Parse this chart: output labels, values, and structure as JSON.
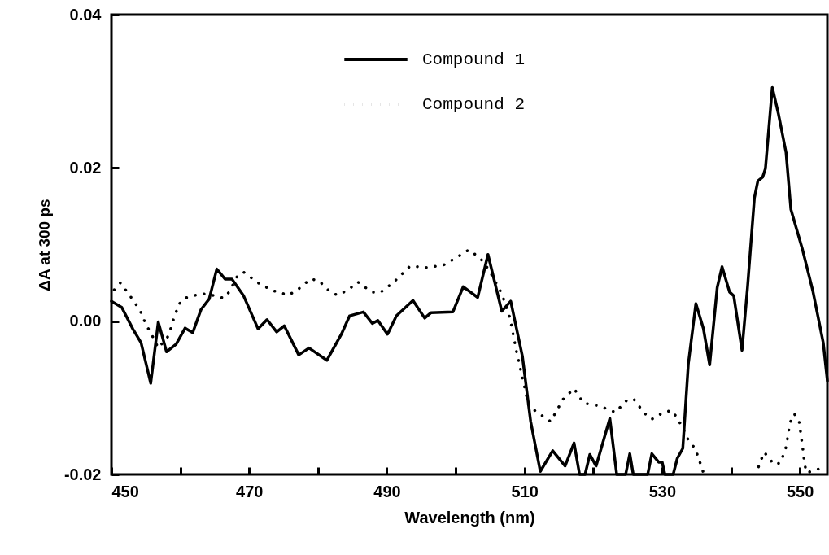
{
  "chart_data": {
    "type": "line",
    "xlabel": "Wavelength (nm)",
    "ylabel": "ΔA at 300 ps",
    "xlim": [
      450,
      554
    ],
    "ylim": [
      -0.02,
      0.04
    ],
    "xticks": [
      450,
      {
        "value": 460,
        "label": null
      },
      470,
      {
        "value": 480,
        "label": null
      },
      490,
      {
        "value": 500,
        "label": null
      },
      510,
      {
        "value": 520,
        "label": null
      },
      530,
      {
        "value": 540,
        "label": null
      },
      550
    ],
    "yticks": [
      {
        "value": -0.02,
        "label": "-0.02"
      },
      {
        "value": 0,
        "label": "0.00"
      },
      {
        "value": 0.02,
        "label": "0.02"
      },
      {
        "value": 0.04,
        "label": "0.04"
      }
    ],
    "grid": false,
    "legend": "top",
    "marker": "none",
    "series": [
      {
        "name": "Compound 1",
        "color": "#000000",
        "line_style": "solid",
        "x": [
          450.0,
          451.5,
          453.1,
          454.3,
          455.7,
          456.8,
          458.0,
          459.4,
          460.7,
          461.8,
          463.0,
          464.2,
          465.3,
          466.5,
          467.5,
          469.2,
          471.3,
          472.6,
          474.0,
          475.1,
          477.2,
          478.7,
          481.3,
          483.4,
          484.6,
          486.6,
          487.9,
          488.7,
          490.1,
          491.4,
          493.8,
          495.5,
          496.4,
          499.6,
          501.1,
          503.2,
          504.7,
          506.7,
          508.0,
          509.7,
          510.9,
          512.3,
          514.1,
          515.9,
          517.2,
          518.0,
          518.8,
          519.5,
          520.4,
          522.4,
          523.4,
          524.7,
          525.3,
          525.8,
          527.9,
          528.5,
          529.5,
          530.0,
          530.4,
          531.6,
          532.2,
          533.0,
          533.8,
          534.9,
          536.0,
          536.9,
          538.0,
          538.7,
          539.8,
          540.4,
          541.6,
          542.4,
          543.4,
          543.9,
          544.6,
          545.0,
          546.0,
          546.9,
          548.0,
          548.7,
          550.4,
          551.9,
          553.4,
          554.0
        ],
        "values": [
          0.0026,
          0.0018,
          -0.001,
          -0.0028,
          -0.0081,
          -0.0001,
          -0.004,
          -0.003,
          -0.0009,
          -0.0015,
          0.0015,
          0.0029,
          0.0068,
          0.0055,
          0.0055,
          0.0033,
          -0.001,
          0.0002,
          -0.0014,
          -0.0006,
          -0.0044,
          -0.0035,
          -0.0051,
          -0.0017,
          0.0007,
          0.0012,
          -0.0003,
          0.0001,
          -0.0017,
          0.0007,
          0.0027,
          0.0004,
          0.0011,
          0.0012,
          0.0045,
          0.0031,
          0.0087,
          0.0013,
          0.0026,
          -0.0046,
          -0.0131,
          -0.0196,
          -0.0169,
          -0.0189,
          -0.0159,
          -0.02,
          -0.02,
          -0.0174,
          -0.0189,
          -0.0127,
          -0.02,
          -0.02,
          -0.0173,
          -0.02,
          -0.02,
          -0.0173,
          -0.0184,
          -0.0184,
          -0.02,
          -0.02,
          -0.0179,
          -0.0166,
          -0.0056,
          0.0023,
          -0.001,
          -0.0057,
          0.0044,
          0.0071,
          0.0038,
          0.0033,
          -0.0038,
          0.0044,
          0.0161,
          0.0183,
          0.0188,
          0.0199,
          0.0305,
          0.027,
          0.022,
          0.0146,
          0.0093,
          0.0039,
          -0.0028,
          -0.0078
        ]
      },
      {
        "name": "Compound 2",
        "color": "#000000",
        "line_style": "dotted",
        "x": [
          450.4,
          451.3,
          452.7,
          454.1,
          455.1,
          455.7,
          456.8,
          458.3,
          459.0,
          459.8,
          460.6,
          463.1,
          465.2,
          466.3,
          467.1,
          468.3,
          469.2,
          471.3,
          473.4,
          475.7,
          476.9,
          478.9,
          480.1,
          481.9,
          482.9,
          484.4,
          485.8,
          487.8,
          489.0,
          490.9,
          493.4,
          495.8,
          498.2,
          500.3,
          501.9,
          503.5,
          504.9,
          506.7,
          507.9,
          508.8,
          509.6,
          510.6,
          511.7,
          513.8,
          515.6,
          517.2,
          518.6,
          521.0,
          523.2,
          525.0,
          525.9,
          527.4,
          528.5,
          530.4,
          531.5,
          532.2,
          532.8,
          533.9,
          534.8,
          535.6,
          536.0,
          540.0,
          544.0,
          544.8,
          545.6,
          546.2,
          547.2,
          548.0,
          548.6,
          549.2,
          549.9,
          550.4,
          550.7,
          551.0,
          553.7
        ],
        "values": [
          0.0041,
          0.005,
          0.0033,
          0.0015,
          -0.0006,
          -0.0015,
          -0.0035,
          -0.0019,
          0.0002,
          0.0022,
          0.003,
          0.0036,
          0.0033,
          0.003,
          0.0038,
          0.0059,
          0.0064,
          0.005,
          0.004,
          0.0034,
          0.004,
          0.0055,
          0.0053,
          0.0037,
          0.0034,
          0.0041,
          0.0051,
          0.0038,
          0.0037,
          0.005,
          0.0072,
          0.007,
          0.0073,
          0.0084,
          0.0093,
          0.0083,
          0.0066,
          0.0036,
          0.0004,
          -0.0038,
          -0.007,
          -0.011,
          -0.0118,
          -0.0131,
          -0.0102,
          -0.0088,
          -0.0107,
          -0.0111,
          -0.0119,
          -0.0102,
          -0.0102,
          -0.012,
          -0.0128,
          -0.0118,
          -0.0117,
          -0.0127,
          -0.0136,
          -0.0157,
          -0.0166,
          -0.0187,
          -0.0198,
          null,
          -0.019,
          -0.0171,
          -0.0179,
          -0.0187,
          -0.0185,
          -0.0164,
          -0.0132,
          -0.0121,
          -0.0131,
          -0.0164,
          -0.0187,
          -0.0198,
          -0.019
        ]
      }
    ]
  }
}
